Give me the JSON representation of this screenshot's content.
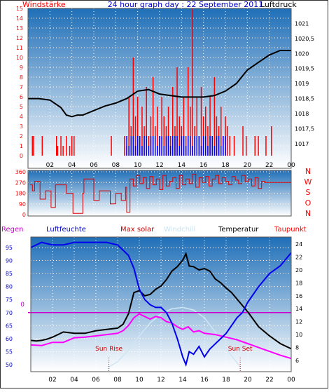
{
  "header": {
    "left_label": "Windstärke",
    "center_title": "24 hour graph day : 22 September 2011",
    "right_label": "Luftdruck"
  },
  "colors": {
    "wind_bar": "#ff0000",
    "gust_bar": "#0000ff",
    "pressure": "#000000",
    "direction": "#dd0000",
    "humidity": "#0000ee",
    "dewpoint": "#ff00ff",
    "temperature": "#000000",
    "rain": "#cc00cc",
    "sky_top": "#1f6fb8",
    "sky_bottom": "#ffffff"
  },
  "chart_data": [
    {
      "type": "bar",
      "name": "wind-pressure",
      "x_ticks": [
        "02",
        "04",
        "06",
        "08",
        "10",
        "12",
        "14",
        "16",
        "18",
        "20",
        "22",
        "00"
      ],
      "wind_y_ticks": [
        "0",
        "1",
        "2",
        "3",
        "4",
        "5",
        "6",
        "7",
        "8",
        "9",
        "10",
        "11",
        "12",
        "13",
        "14",
        "15"
      ],
      "pressure_y_ticks": [
        "1017",
        "1017,5",
        "1018",
        "1018,5",
        "1019",
        "1019,5",
        "1020",
        "1020,5",
        "1021"
      ],
      "wind_ylim": [
        0,
        15
      ],
      "pressure_ylim": [
        1016.6,
        1021.5
      ],
      "xlim": [
        0,
        24
      ],
      "series": [
        {
          "name": "Windstärke",
          "x": [
            0.4,
            0.5,
            1.3,
            2.6,
            2.7,
            3.0,
            3.2,
            3.5,
            3.8,
            4.0,
            4.2,
            7.6,
            8.8,
            9.0,
            9.2,
            9.4,
            9.6,
            9.8,
            10.0,
            10.2,
            10.4,
            10.6,
            10.8,
            11.0,
            11.2,
            11.4,
            11.6,
            11.8,
            12.0,
            12.2,
            12.4,
            12.6,
            12.8,
            13.0,
            13.2,
            13.4,
            13.6,
            13.8,
            14.0,
            14.2,
            14.4,
            14.6,
            14.8,
            15.0,
            15.2,
            15.4,
            15.6,
            15.8,
            16.0,
            16.2,
            16.4,
            16.6,
            16.8,
            17.0,
            17.2,
            17.4,
            17.6,
            17.8,
            18.0,
            18.2,
            18.4,
            18.8,
            19.6,
            19.9,
            20.7,
            21.0,
            21.7,
            22.2
          ],
          "values": [
            2,
            2,
            2,
            2,
            1,
            2,
            1,
            2,
            1,
            2,
            2,
            2,
            2,
            1,
            6,
            3,
            10,
            4,
            6,
            2,
            5,
            3,
            7,
            2,
            4,
            8,
            3,
            5,
            2,
            6,
            4,
            3,
            5,
            2,
            7,
            3,
            9,
            4,
            3,
            6,
            2,
            9,
            5,
            15,
            3,
            6,
            2,
            7,
            4,
            5,
            3,
            6,
            2,
            8,
            4,
            3,
            5,
            2,
            4,
            3,
            2,
            2,
            3,
            2,
            2,
            2,
            2,
            3
          ]
        },
        {
          "name": "Gust",
          "x": [
            9.0,
            9.2,
            9.4,
            9.6,
            9.8,
            10.0,
            10.2,
            10.4,
            10.6,
            10.8,
            11.0,
            11.2,
            11.4,
            11.6,
            11.8,
            12.0,
            12.2,
            12.4,
            12.6,
            12.8,
            13.0,
            13.2,
            13.4,
            13.6,
            13.8,
            14.0,
            14.2,
            14.4,
            14.6,
            14.8,
            15.0,
            15.2,
            15.4,
            15.6,
            15.8,
            16.0,
            16.2,
            16.4,
            16.6,
            16.8,
            17.0,
            17.2,
            17.4,
            17.6,
            17.8,
            18.0
          ],
          "values": [
            2,
            1,
            2,
            2,
            1,
            2,
            2,
            1,
            2,
            2,
            1,
            2,
            2,
            2,
            1,
            2,
            2,
            1,
            2,
            2,
            1,
            2,
            2,
            2,
            1,
            2,
            2,
            1,
            2,
            2,
            1,
            2,
            2,
            2,
            1,
            2,
            2,
            1,
            2,
            2,
            1,
            2,
            2,
            1,
            2,
            2
          ]
        },
        {
          "name": "Luftdruck",
          "x": [
            0,
            1,
            2,
            3,
            3.5,
            4,
            4.5,
            5,
            6,
            7,
            8,
            9,
            10,
            11,
            12,
            13,
            14,
            15,
            16,
            17,
            18,
            19,
            20,
            21,
            22,
            23,
            24
          ],
          "values": [
            1018.5,
            1018.5,
            1018.45,
            1018.2,
            1017.95,
            1017.9,
            1017.95,
            1017.95,
            1018.1,
            1018.25,
            1018.35,
            1018.5,
            1018.75,
            1018.8,
            1018.65,
            1018.6,
            1018.55,
            1018.55,
            1018.55,
            1018.6,
            1018.75,
            1019.0,
            1019.45,
            1019.7,
            1019.95,
            1020.1,
            1020.1
          ]
        }
      ]
    },
    {
      "type": "line",
      "name": "wind-direction",
      "x_ticks": [
        "02",
        "04",
        "06",
        "08",
        "10",
        "12",
        "14",
        "16",
        "18",
        "20",
        "22",
        "00"
      ],
      "y_ticks": [
        "0",
        "90",
        "180",
        "270",
        "360"
      ],
      "compass_labels": [
        "N",
        "W",
        "S",
        "O",
        "N"
      ],
      "ylim": [
        0,
        360
      ],
      "xlim": [
        0,
        24
      ],
      "series": [
        {
          "name": "Windrichtung",
          "x": [
            0.2,
            0.4,
            0.6,
            1.0,
            1.1,
            1.5,
            1.6,
            2.0,
            2.1,
            2.4,
            2.5,
            3.0,
            3.5,
            4.0,
            4.1,
            4.5,
            5.0,
            5.1,
            5.5,
            6.0,
            6.1,
            6.5,
            7.0,
            7.5,
            8.0,
            8.5,
            8.9,
            9.0,
            9.3,
            9.6,
            9.9,
            10.2,
            10.5,
            10.8,
            11.1,
            11.4,
            11.7,
            12.0,
            12.3,
            12.6,
            12.9,
            13.2,
            13.5,
            13.8,
            14.1,
            14.4,
            14.7,
            15.0,
            15.3,
            15.6,
            15.9,
            16.2,
            16.5,
            16.8,
            17.1,
            17.4,
            17.7,
            18.0,
            18.3,
            18.6,
            18.9,
            19.2,
            19.5,
            19.8,
            20.1,
            20.4,
            20.7,
            21.0,
            21.3,
            21.6,
            22.0,
            23.0,
            24.0
          ],
          "values": [
            250,
            200,
            280,
            280,
            130,
            130,
            200,
            200,
            60,
            60,
            250,
            250,
            180,
            180,
            10,
            10,
            180,
            300,
            300,
            120,
            120,
            200,
            200,
            90,
            180,
            120,
            230,
            20,
            300,
            240,
            330,
            260,
            310,
            220,
            320,
            250,
            300,
            210,
            330,
            240,
            280,
            310,
            220,
            330,
            250,
            300,
            260,
            340,
            230,
            310,
            270,
            320,
            240,
            300,
            330,
            260,
            310,
            280,
            250,
            320,
            290,
            260,
            330,
            280,
            300,
            240,
            310,
            220,
            280,
            270,
            270,
            270,
            270
          ]
        }
      ]
    },
    {
      "type": "line",
      "name": "temperature-humidity",
      "x_ticks": [
        "02",
        "04",
        "06",
        "08",
        "10",
        "12",
        "14",
        "16",
        "18",
        "20",
        "22",
        "00"
      ],
      "left_y_ticks": [
        "50",
        "55",
        "60",
        "65",
        "70",
        "75",
        "80",
        "85",
        "90",
        "95"
      ],
      "right_y_ticks": [
        "6",
        "8",
        "10",
        "12",
        "14",
        "16",
        "18",
        "20",
        "22",
        "24"
      ],
      "rain_zero_label": "0",
      "left_ylim": [
        48,
        98
      ],
      "right_ylim": [
        5,
        25
      ],
      "xlim": [
        0,
        24
      ],
      "annotations": [
        {
          "text": "Sun Rise",
          "x": 7.2
        },
        {
          "text": "Sun Set",
          "x": 19.3
        }
      ],
      "legend": [
        "Regen",
        "Luftfeuchte",
        "Max solar",
        "Windchill",
        "Temperatur",
        "Taupunkt"
      ],
      "series": [
        {
          "name": "Luftfeuchte",
          "x": [
            0,
            1,
            2,
            3,
            4,
            5,
            6,
            7,
            8,
            9,
            9.5,
            10,
            10.5,
            11,
            11.5,
            12,
            12.5,
            13,
            13.5,
            14,
            14.3,
            14.6,
            15,
            15.5,
            16,
            16.5,
            17,
            17.5,
            18,
            18.5,
            19,
            19.5,
            20,
            21,
            22,
            23,
            24
          ],
          "values": [
            95,
            97,
            96,
            96,
            97,
            97,
            97,
            97,
            96,
            92,
            87,
            79,
            75,
            73,
            72,
            72,
            70,
            66,
            60,
            53,
            50,
            55,
            54,
            57,
            53,
            56,
            58,
            60,
            62,
            65,
            68,
            70,
            74,
            80,
            85,
            88,
            93
          ]
        },
        {
          "name": "Temperatur",
          "x": [
            0,
            0.5,
            1,
            1.5,
            2,
            2.5,
            3,
            4,
            5,
            6,
            7,
            8,
            8.5,
            9,
            9.5,
            10,
            10.5,
            11,
            11.5,
            12,
            12.5,
            13,
            13.5,
            14,
            14.3,
            14.6,
            15,
            15.5,
            16,
            16.5,
            17,
            17.5,
            18,
            18.5,
            19,
            19.5,
            20,
            21,
            22,
            23,
            24
          ],
          "values": [
            9.1,
            9.0,
            9.1,
            9.3,
            9.6,
            10.0,
            10.4,
            10.2,
            10.2,
            10.6,
            10.8,
            11.0,
            11.6,
            13.2,
            16.5,
            16.8,
            16.0,
            16.2,
            17.0,
            17.5,
            18.5,
            19.8,
            20.5,
            21.5,
            22.5,
            20.6,
            20.5,
            20.0,
            20.2,
            19.8,
            18.6,
            18.0,
            17.2,
            16.5,
            15.5,
            14.5,
            13.5,
            11.2,
            9.8,
            8.6,
            7.8
          ]
        },
        {
          "name": "Taupunkt",
          "x": [
            0,
            1,
            2,
            3,
            4,
            5,
            6,
            7,
            8,
            8.5,
            9,
            9.5,
            10,
            10.5,
            11,
            11.5,
            12,
            12.5,
            13,
            13.5,
            14,
            14.5,
            15,
            15.5,
            16,
            17,
            18,
            19,
            20,
            21,
            22,
            23,
            24
          ],
          "values": [
            8.4,
            8.3,
            8.8,
            8.8,
            9.5,
            9.6,
            9.8,
            10.0,
            10.2,
            10.6,
            11.4,
            12.6,
            13.2,
            12.8,
            12.4,
            12.8,
            12.6,
            12.0,
            11.8,
            11.2,
            10.8,
            11.2,
            10.4,
            10.6,
            10.2,
            10.0,
            9.6,
            9.2,
            8.6,
            8.0,
            7.4,
            6.8,
            6.3
          ]
        },
        {
          "name": "Max solar",
          "x": [
            7.2,
            8,
            9,
            10,
            11,
            12,
            13,
            14,
            15,
            16,
            17,
            18,
            19.3
          ],
          "values": [
            5,
            5.8,
            7.6,
            9.8,
            11.8,
            13.2,
            14.0,
            14.2,
            13.8,
            12.6,
            10.4,
            7.8,
            5
          ]
        },
        {
          "name": "Regen",
          "x": [
            0,
            24
          ],
          "values": [
            0,
            0
          ]
        }
      ]
    }
  ]
}
